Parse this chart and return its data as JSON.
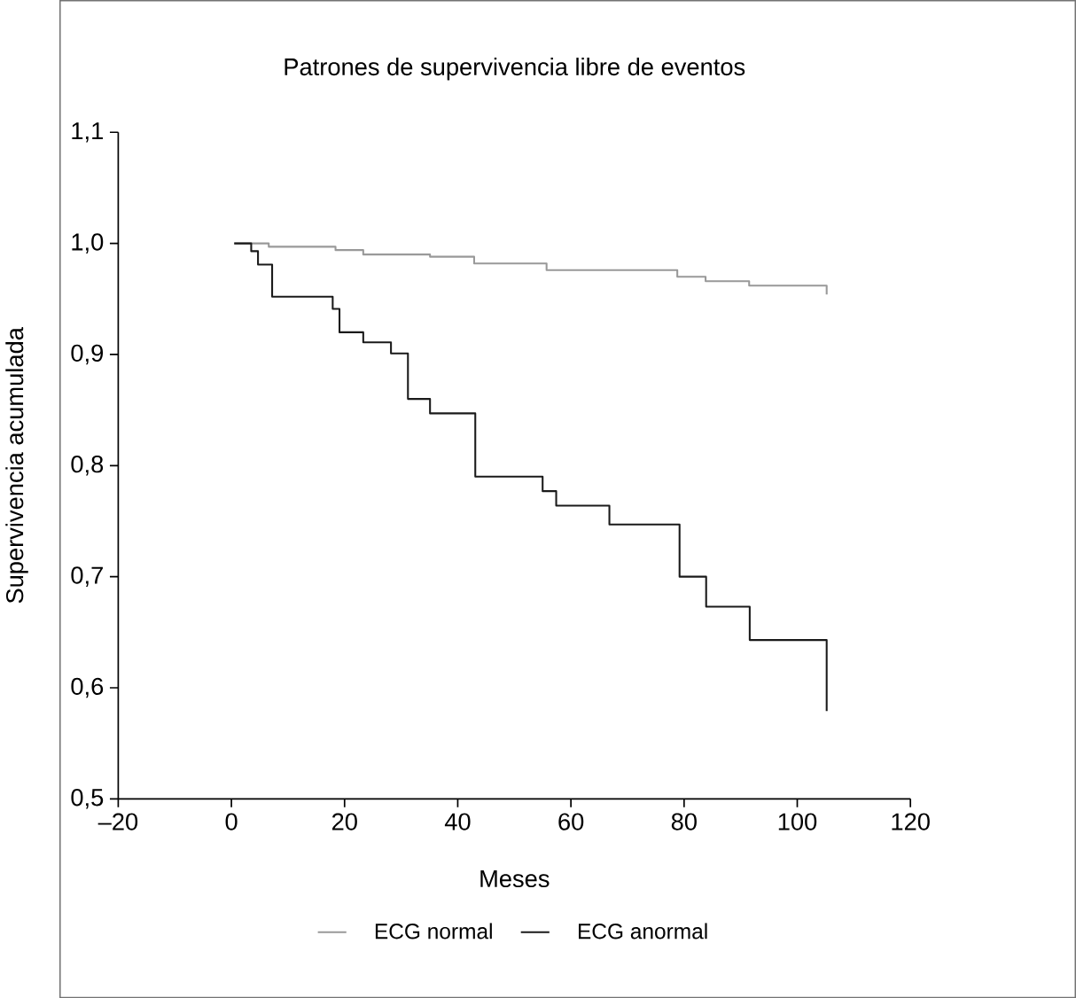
{
  "chart_data": {
    "type": "step",
    "title": "Patrones de supervivencia libre de eventos",
    "xlabel": "Meses",
    "ylabel": "Supervivencia acumulada",
    "xlim": [
      -20,
      120
    ],
    "xticks": [
      {
        "value": -20,
        "label": "–20"
      },
      0,
      20,
      40,
      60,
      80,
      100,
      120
    ],
    "ylim": [
      0.5,
      1.1
    ],
    "yticks": [
      {
        "value": 0.5,
        "label": "0,5"
      },
      {
        "value": 0.6,
        "label": "0,6"
      },
      {
        "value": 0.7,
        "label": "0,7"
      },
      {
        "value": 0.8,
        "label": "0,8"
      },
      {
        "value": 0.9,
        "label": "0,9"
      },
      {
        "value": 1.0,
        "label": "1,0"
      },
      {
        "value": 1.1,
        "label": "1,1"
      }
    ],
    "grid": false,
    "legend": "bottom",
    "marker": "none",
    "line_style": "solid",
    "series": [
      {
        "name": "ECG normal",
        "color": "#999999",
        "x": [
          0.5,
          6.6,
          18.4,
          23.3,
          35.1,
          42.9,
          55.7,
          78.8,
          83.8,
          91.5,
          105.2
        ],
        "values": [
          1.0,
          0.997,
          0.994,
          0.99,
          0.988,
          0.982,
          0.976,
          0.97,
          0.966,
          0.962,
          0.954
        ]
      },
      {
        "name": "ECG anormal",
        "color": "#1a1a1a",
        "x": [
          0.5,
          3.5,
          4.7,
          7.2,
          17.9,
          19.1,
          23.3,
          28.2,
          31.2,
          35.1,
          43.1,
          55.0,
          57.4,
          66.8,
          79.2,
          83.9,
          91.6,
          105.2
        ],
        "values": [
          1.0,
          0.993,
          0.981,
          0.952,
          0.941,
          0.92,
          0.911,
          0.901,
          0.86,
          0.847,
          0.79,
          0.777,
          0.764,
          0.747,
          0.7,
          0.673,
          0.643,
          0.579
        ]
      }
    ]
  }
}
